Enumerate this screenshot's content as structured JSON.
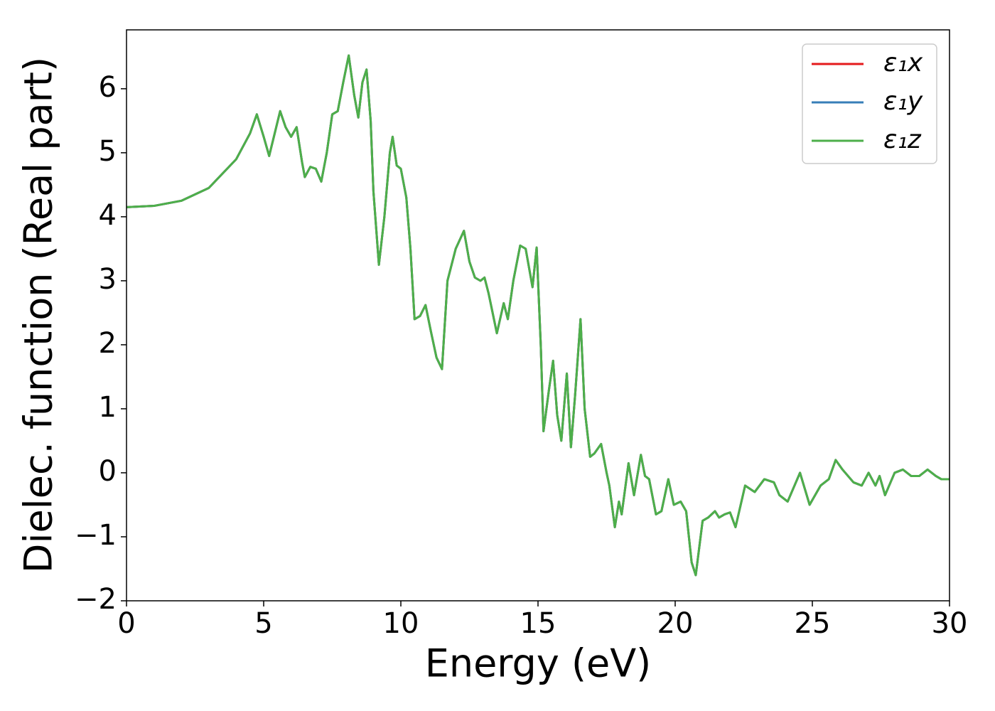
{
  "chart_data": {
    "type": "line",
    "xlabel": "Energy (eV)",
    "ylabel": "Dielec. function (Real part)",
    "x": [
      0,
      1,
      2,
      3,
      4,
      4.5,
      4.75,
      5.0,
      5.2,
      5.4,
      5.6,
      5.8,
      6.0,
      6.2,
      6.4,
      6.5,
      6.7,
      6.9,
      7.1,
      7.3,
      7.5,
      7.7,
      7.9,
      8.1,
      8.3,
      8.45,
      8.6,
      8.75,
      8.9,
      9.0,
      9.2,
      9.4,
      9.6,
      9.7,
      9.85,
      10.0,
      10.2,
      10.35,
      10.5,
      10.7,
      10.9,
      11.1,
      11.3,
      11.5,
      11.7,
      12.0,
      12.3,
      12.5,
      12.7,
      12.9,
      13.05,
      13.2,
      13.5,
      13.75,
      13.9,
      14.1,
      14.35,
      14.55,
      14.8,
      14.95,
      15.1,
      15.2,
      15.4,
      15.55,
      15.7,
      15.85,
      16.05,
      16.2,
      16.35,
      16.55,
      16.7,
      16.9,
      17.05,
      17.3,
      17.5,
      17.6,
      17.8,
      17.95,
      18.05,
      18.3,
      18.5,
      18.75,
      18.9,
      19.05,
      19.3,
      19.5,
      19.75,
      19.95,
      20.2,
      20.4,
      20.6,
      20.75,
      21.0,
      21.2,
      21.45,
      21.6,
      21.8,
      22.0,
      22.2,
      22.55,
      22.9,
      23.25,
      23.6,
      23.8,
      24.1,
      24.55,
      24.9,
      25.3,
      25.6,
      25.85,
      26.1,
      26.5,
      26.8,
      27.05,
      27.3,
      27.45,
      27.65,
      28.0,
      28.3,
      28.6,
      28.9,
      29.2,
      29.5,
      29.7,
      30.0
    ],
    "series": [
      {
        "name": "ε₁x",
        "color": "#e41a1c",
        "values": [
          4.15,
          4.17,
          4.25,
          4.45,
          4.9,
          5.3,
          5.6,
          5.25,
          4.95,
          5.3,
          5.65,
          5.4,
          5.25,
          5.4,
          4.85,
          4.62,
          4.78,
          4.75,
          4.55,
          5.0,
          5.6,
          5.65,
          6.1,
          6.52,
          5.9,
          5.55,
          6.1,
          6.3,
          5.5,
          4.4,
          3.25,
          4.0,
          5.0,
          5.25,
          4.8,
          4.75,
          4.3,
          3.5,
          2.4,
          2.45,
          2.62,
          2.2,
          1.8,
          1.62,
          3.0,
          3.5,
          3.78,
          3.3,
          3.05,
          3.0,
          3.05,
          2.8,
          2.18,
          2.65,
          2.4,
          3.0,
          3.55,
          3.5,
          2.9,
          3.52,
          2.0,
          0.65,
          1.3,
          1.75,
          0.9,
          0.5,
          1.55,
          0.4,
          1.2,
          2.4,
          1.0,
          0.25,
          0.3,
          0.45,
          0.0,
          -0.2,
          -0.85,
          -0.45,
          -0.65,
          0.15,
          -0.35,
          0.28,
          -0.05,
          -0.1,
          -0.65,
          -0.6,
          -0.1,
          -0.5,
          -0.45,
          -0.6,
          -1.4,
          -1.6,
          -0.75,
          -0.7,
          -0.6,
          -0.7,
          -0.65,
          -0.62,
          -0.85,
          -0.2,
          -0.3,
          -0.1,
          -0.15,
          -0.35,
          -0.45,
          0.0,
          -0.5,
          -0.2,
          -0.1,
          0.2,
          0.05,
          -0.15,
          -0.2,
          0.0,
          -0.2,
          -0.05,
          -0.35,
          0.0,
          0.05,
          -0.05,
          -0.05,
          0.05,
          -0.05,
          -0.1,
          -0.1
        ]
      },
      {
        "name": "ε₁y",
        "color": "#377eb8",
        "values": [
          4.15,
          4.17,
          4.25,
          4.45,
          4.9,
          5.3,
          5.6,
          5.25,
          4.95,
          5.3,
          5.65,
          5.4,
          5.25,
          5.4,
          4.85,
          4.62,
          4.78,
          4.75,
          4.55,
          5.0,
          5.6,
          5.65,
          6.1,
          6.52,
          5.9,
          5.55,
          6.1,
          6.3,
          5.5,
          4.4,
          3.25,
          4.0,
          5.0,
          5.25,
          4.8,
          4.75,
          4.3,
          3.5,
          2.4,
          2.45,
          2.62,
          2.2,
          1.8,
          1.62,
          3.0,
          3.5,
          3.78,
          3.3,
          3.05,
          3.0,
          3.05,
          2.8,
          2.18,
          2.65,
          2.4,
          3.0,
          3.55,
          3.5,
          2.9,
          3.52,
          2.0,
          0.65,
          1.3,
          1.75,
          0.9,
          0.5,
          1.55,
          0.4,
          1.2,
          2.4,
          1.0,
          0.25,
          0.3,
          0.45,
          0.0,
          -0.2,
          -0.85,
          -0.45,
          -0.65,
          0.15,
          -0.35,
          0.28,
          -0.05,
          -0.1,
          -0.65,
          -0.6,
          -0.1,
          -0.5,
          -0.45,
          -0.6,
          -1.4,
          -1.6,
          -0.75,
          -0.7,
          -0.6,
          -0.7,
          -0.65,
          -0.62,
          -0.85,
          -0.2,
          -0.3,
          -0.1,
          -0.15,
          -0.35,
          -0.45,
          0.0,
          -0.5,
          -0.2,
          -0.1,
          0.2,
          0.05,
          -0.15,
          -0.2,
          0.0,
          -0.2,
          -0.05,
          -0.35,
          0.0,
          0.05,
          -0.05,
          -0.05,
          0.05,
          -0.05,
          -0.1,
          -0.1
        ]
      },
      {
        "name": "ε₁z",
        "color": "#4daf4a",
        "values": [
          4.15,
          4.17,
          4.25,
          4.45,
          4.9,
          5.3,
          5.6,
          5.25,
          4.95,
          5.3,
          5.65,
          5.4,
          5.25,
          5.4,
          4.85,
          4.62,
          4.78,
          4.75,
          4.55,
          5.0,
          5.6,
          5.65,
          6.1,
          6.52,
          5.9,
          5.55,
          6.1,
          6.3,
          5.5,
          4.4,
          3.25,
          4.0,
          5.0,
          5.25,
          4.8,
          4.75,
          4.3,
          3.5,
          2.4,
          2.45,
          2.62,
          2.2,
          1.8,
          1.62,
          3.0,
          3.5,
          3.78,
          3.3,
          3.05,
          3.0,
          3.05,
          2.8,
          2.18,
          2.65,
          2.4,
          3.0,
          3.55,
          3.5,
          2.9,
          3.52,
          2.0,
          0.65,
          1.3,
          1.75,
          0.9,
          0.5,
          1.55,
          0.4,
          1.2,
          2.4,
          1.0,
          0.25,
          0.3,
          0.45,
          0.0,
          -0.2,
          -0.85,
          -0.45,
          -0.65,
          0.15,
          -0.35,
          0.28,
          -0.05,
          -0.1,
          -0.65,
          -0.6,
          -0.1,
          -0.5,
          -0.45,
          -0.6,
          -1.4,
          -1.6,
          -0.75,
          -0.7,
          -0.6,
          -0.7,
          -0.65,
          -0.62,
          -0.85,
          -0.2,
          -0.3,
          -0.1,
          -0.15,
          -0.35,
          -0.45,
          0.0,
          -0.5,
          -0.2,
          -0.1,
          0.2,
          0.05,
          -0.15,
          -0.2,
          0.0,
          -0.2,
          -0.05,
          -0.35,
          0.0,
          0.05,
          -0.05,
          -0.05,
          0.05,
          -0.05,
          -0.1,
          -0.1
        ]
      }
    ],
    "xlim": [
      0,
      30
    ],
    "xticks": [
      0,
      5,
      10,
      15,
      20,
      25,
      30
    ],
    "ylim": [
      -2,
      6.92
    ],
    "yticks": [
      {
        "value": -2,
        "label": "−2"
      },
      {
        "value": -1,
        "label": "−1"
      },
      0,
      1,
      2,
      3,
      4,
      5,
      6
    ],
    "grid": false,
    "legend": "upper right"
  }
}
